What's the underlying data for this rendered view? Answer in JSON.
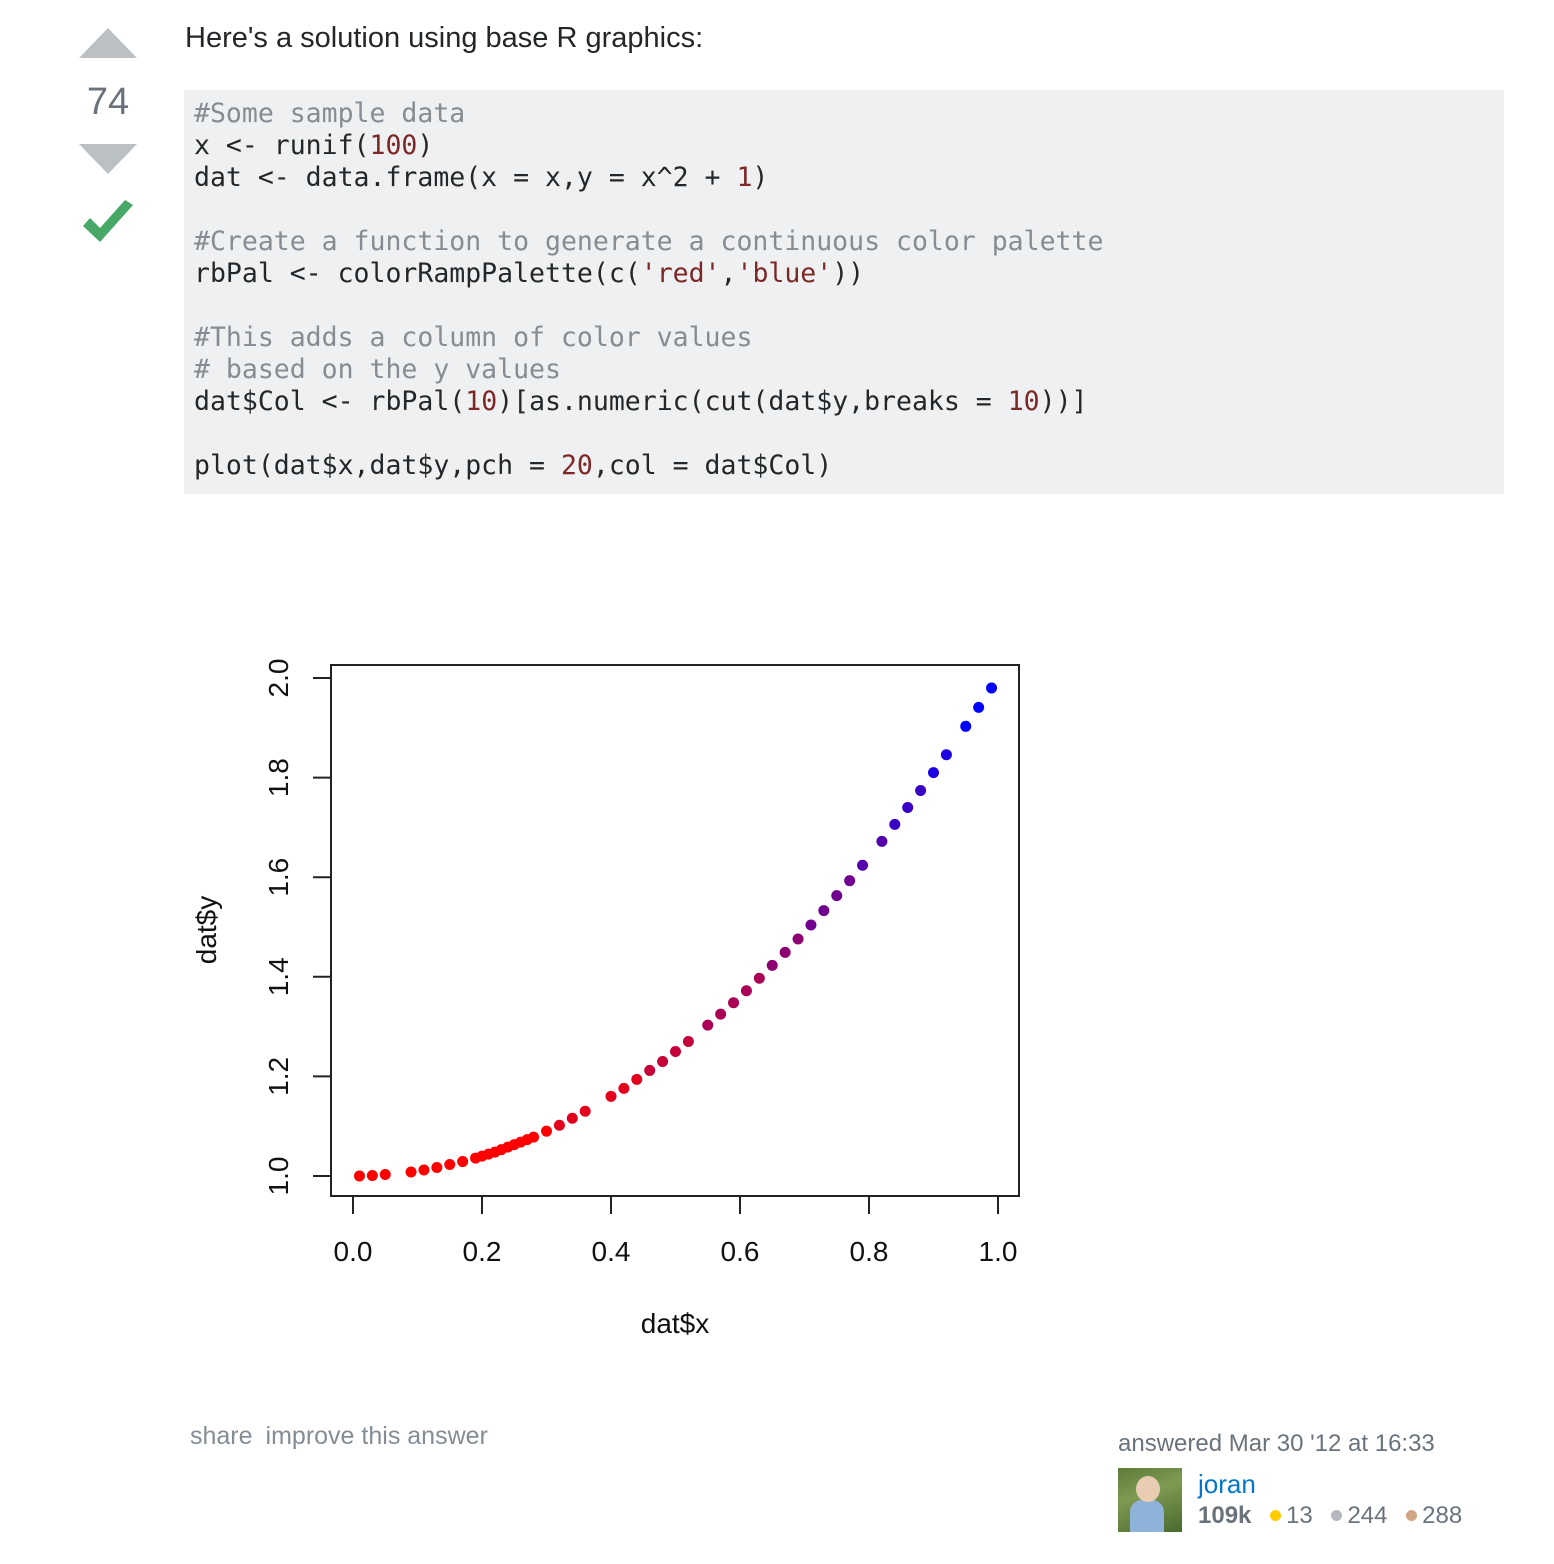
{
  "vote": {
    "count": "74"
  },
  "answer": {
    "intro": "Here's a solution using base R graphics:"
  },
  "code": {
    "c1": "#Some sample data",
    "l2a": "x <- runif(",
    "l2n": "100",
    "l2b": ")",
    "l3a": "dat <- data.frame(x = x,y = x^2 + ",
    "l3n": "1",
    "l3b": ")",
    "c2": "#Create a function to generate a continuous color palette",
    "l5a": "rbPal <- colorRampPalette(c(",
    "l5s1": "'red'",
    "l5c": ",",
    "l5s2": "'blue'",
    "l5b": "))",
    "c3": "#This adds a column of color values",
    "c4": "# based on the y values",
    "l8a": "dat$Col <- rbPal(",
    "l8n1": "10",
    "l8b": ")[as.numeric(cut(dat$y,breaks = ",
    "l8n2": "10",
    "l8c": "))]",
    "l9a": "plot(dat$x,dat$y,pch = ",
    "l9n": "20",
    "l9b": ",col = dat$Col)"
  },
  "chart_data": {
    "type": "scatter",
    "xlabel": "dat$x",
    "ylabel": "dat$y",
    "xlim": [
      0,
      1
    ],
    "ylim": [
      1,
      2
    ],
    "xticks": [
      "0.0",
      "0.2",
      "0.4",
      "0.6",
      "0.8",
      "1.0"
    ],
    "yticks": [
      "1.0",
      "1.2",
      "1.4",
      "1.6",
      "1.8",
      "2.0"
    ],
    "color_low": "#ff0000",
    "color_high": "#0000ff",
    "x": [
      0.01,
      0.03,
      0.05,
      0.09,
      0.11,
      0.13,
      0.15,
      0.17,
      0.19,
      0.2,
      0.21,
      0.22,
      0.23,
      0.24,
      0.25,
      0.26,
      0.27,
      0.28,
      0.3,
      0.32,
      0.34,
      0.36,
      0.4,
      0.42,
      0.44,
      0.46,
      0.48,
      0.5,
      0.52,
      0.55,
      0.57,
      0.59,
      0.61,
      0.63,
      0.65,
      0.67,
      0.69,
      0.71,
      0.73,
      0.75,
      0.77,
      0.79,
      0.82,
      0.84,
      0.86,
      0.88,
      0.9,
      0.92,
      0.95,
      0.97,
      0.99
    ],
    "y": [
      1.0,
      1.001,
      1.003,
      1.008,
      1.012,
      1.017,
      1.023,
      1.029,
      1.036,
      1.04,
      1.044,
      1.048,
      1.053,
      1.058,
      1.063,
      1.068,
      1.073,
      1.078,
      1.09,
      1.102,
      1.116,
      1.13,
      1.16,
      1.176,
      1.194,
      1.212,
      1.23,
      1.25,
      1.27,
      1.303,
      1.325,
      1.348,
      1.372,
      1.397,
      1.423,
      1.449,
      1.476,
      1.504,
      1.533,
      1.563,
      1.593,
      1.624,
      1.672,
      1.706,
      1.74,
      1.774,
      1.81,
      1.846,
      1.903,
      1.941,
      1.98
    ]
  },
  "post_menu": {
    "share": "share",
    "improve": "improve this answer"
  },
  "user": {
    "answered": "answered Mar 30 '12 at 16:33",
    "name": "joran",
    "reputation": "109k",
    "gold": "13",
    "silver": "244",
    "bronze": "288",
    "gold_color": "#ffcc01",
    "silver_color": "#b4b8bc",
    "bronze_color": "#d1a684"
  }
}
